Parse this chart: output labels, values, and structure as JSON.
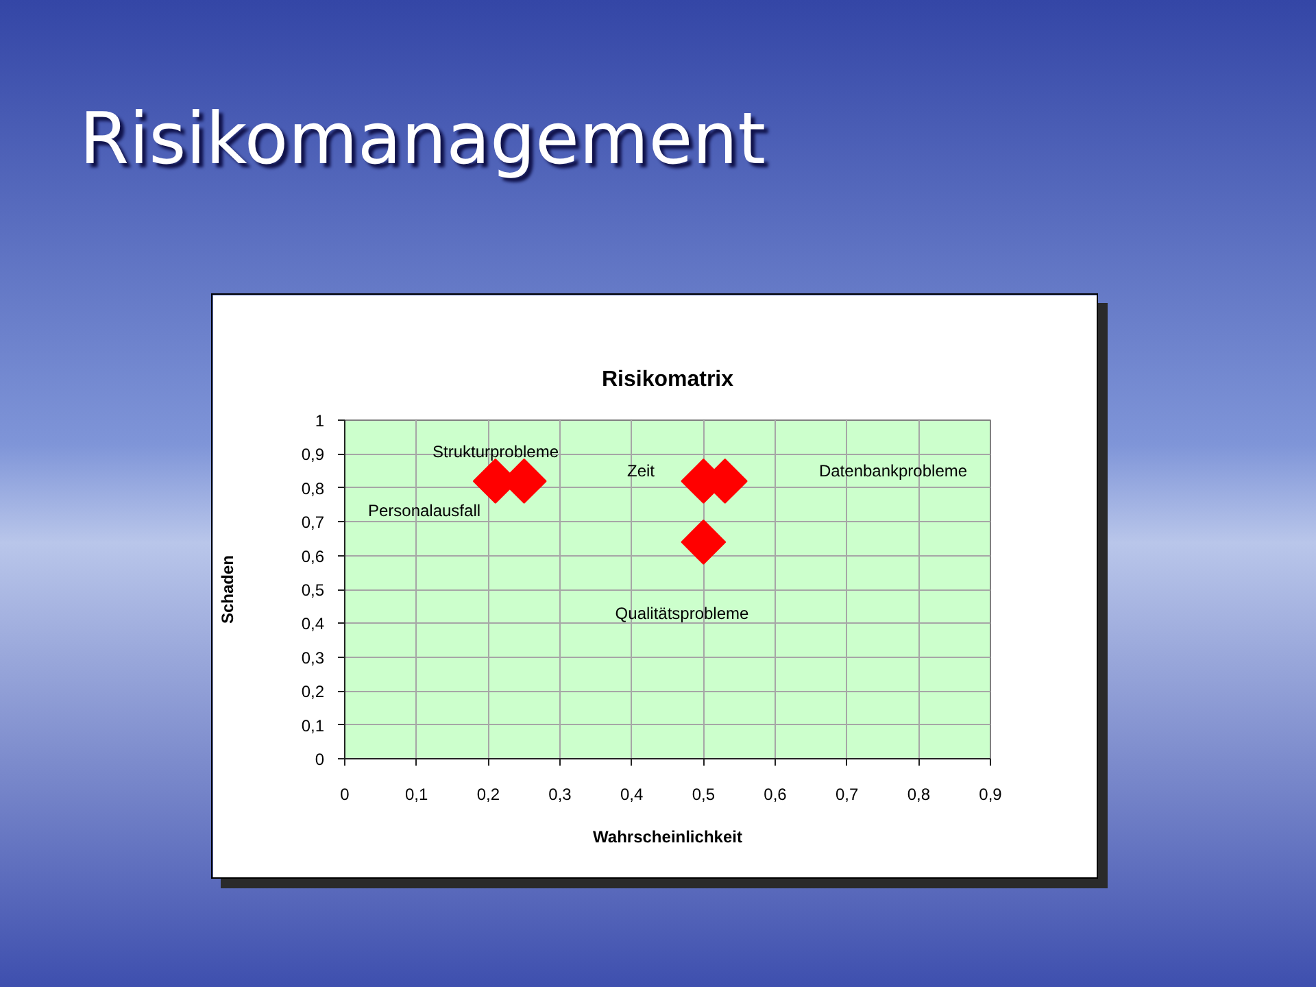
{
  "chart_data": {
    "type": "scatter",
    "title": "Risikomanagement",
    "subtitle": "Risikomatrix",
    "xlabel": "Wahrscheinlichkeit",
    "ylabel": "Schaden",
    "x": [
      0.21,
      0.25,
      0.5,
      0.53,
      0.5
    ],
    "values": [
      0.82,
      0.82,
      0.82,
      0.82,
      0.64
    ],
    "color": "#ff0000",
    "marker": "diamond",
    "xlim": [
      0,
      0.9
    ],
    "ylim": [
      0,
      1
    ],
    "xticks": [
      0,
      {
        "value": 0.1,
        "label": "0,1"
      },
      {
        "value": 0.2,
        "label": "0,2"
      },
      {
        "value": 0.3,
        "label": "0,3"
      },
      {
        "value": 0.4,
        "label": "0,4"
      },
      {
        "value": 0.5,
        "label": "0,5"
      },
      {
        "value": 0.6,
        "label": "0,6"
      },
      {
        "value": 0.7,
        "label": "0,7"
      },
      {
        "value": 0.8,
        "label": "0,8"
      },
      {
        "value": 0.9,
        "label": "0,9"
      }
    ],
    "yticks": [
      0,
      {
        "value": 0.1,
        "label": "0,1"
      },
      {
        "value": 0.2,
        "label": "0,2"
      },
      {
        "value": 0.3,
        "label": "0,3"
      },
      {
        "value": 0.4,
        "label": "0,4"
      },
      {
        "value": 0.5,
        "label": "0,5"
      },
      {
        "value": 0.6,
        "label": "0,6"
      },
      {
        "value": 0.7,
        "label": "0,7"
      },
      {
        "value": 0.8,
        "label": "0,8"
      },
      {
        "value": 0.9,
        "label": "0,9"
      },
      1
    ],
    "grid": true,
    "annotations": [
      "Personalausfall",
      "Strukturprobleme",
      "Zeit",
      "Datenbankprobleme",
      "Qualitätsprobleme"
    ]
  }
}
